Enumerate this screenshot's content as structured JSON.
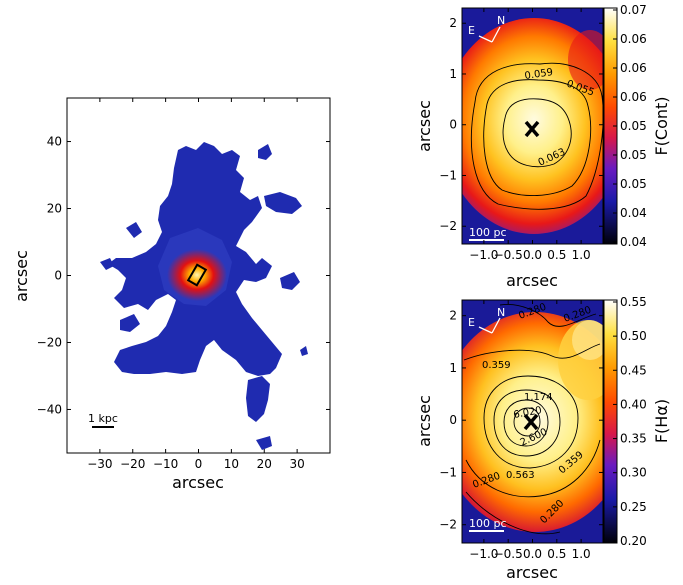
{
  "chart_data": [
    {
      "type": "heatmap",
      "panel": "left",
      "xlabel": "arcsec",
      "ylabel": "arcsec",
      "xlim": [
        -40,
        40
      ],
      "ylim": [
        -53,
        53
      ],
      "xticks": [
        -30,
        -20,
        -10,
        0,
        10,
        20,
        30
      ],
      "yticks": [
        -40,
        -20,
        0,
        20,
        40
      ],
      "xtick_labels": [
        "−30",
        "−20",
        "−10",
        "0",
        "10",
        "20",
        "30"
      ],
      "ytick_labels": [
        "−40",
        "−20",
        "0",
        "20",
        "40"
      ],
      "scale_bar": "1 kpc",
      "colormap": [
        "#1a1fa8",
        "#2f3ab8",
        "#e01010",
        "#ff9a00",
        "#fff3a0"
      ],
      "box_center": [
        0,
        0
      ]
    },
    {
      "type": "heatmap",
      "panel": "top-right",
      "xlabel": "arcsec",
      "ylabel": "arcsec",
      "colorbar_label": "F(Cont)",
      "xlim": [
        -1.45,
        1.45
      ],
      "ylim": [
        -2.35,
        2.3
      ],
      "xticks": [
        -1.0,
        -0.5,
        0.0,
        0.5,
        1.0
      ],
      "yticks": [
        -2,
        -1,
        0,
        1,
        2
      ],
      "xtick_labels": [
        "−1.0",
        "−0.5",
        "0.0",
        "0.5",
        "1.0"
      ],
      "ytick_labels": [
        "−2",
        "−1",
        "0",
        "1",
        "2"
      ],
      "colorbar_ticks": [
        "0.07",
        "0.06",
        "0.06",
        "0.06",
        "0.05",
        "0.05",
        "0.05",
        "0.04",
        "0.04"
      ],
      "contour_labels": [
        "0.059",
        "0.055",
        "0.063"
      ],
      "compass": {
        "north": "N",
        "east": "E"
      },
      "scale_bar": "100 pc",
      "peak_marker": [
        0,
        0
      ]
    },
    {
      "type": "heatmap",
      "panel": "bottom-right",
      "xlabel": "arcsec",
      "ylabel": "arcsec",
      "colorbar_label": "F(Hα)",
      "xlim": [
        -1.45,
        1.45
      ],
      "ylim": [
        -2.35,
        2.3
      ],
      "xticks": [
        -1.0,
        -0.5,
        0.0,
        0.5,
        1.0
      ],
      "yticks": [
        -2,
        -1,
        0,
        1,
        2
      ],
      "xtick_labels": [
        "−1.0",
        "−0.5",
        "0.0",
        "0.5",
        "1.0"
      ],
      "ytick_labels": [
        "−2",
        "−1",
        "0",
        "1",
        "2"
      ],
      "colorbar_ticks": [
        "0.55",
        "0.50",
        "0.45",
        "0.40",
        "0.35",
        "0.30",
        "0.25",
        "0.20"
      ],
      "contour_labels": [
        "0.280",
        "0.280",
        "0.359",
        "1.174",
        "6.020",
        "2.600",
        "0.563",
        "0.359",
        "0.280",
        "0.280"
      ],
      "compass": {
        "north": "N",
        "east": "E"
      },
      "scale_bar": "100 pc",
      "peak_marker": [
        0,
        0
      ]
    }
  ]
}
